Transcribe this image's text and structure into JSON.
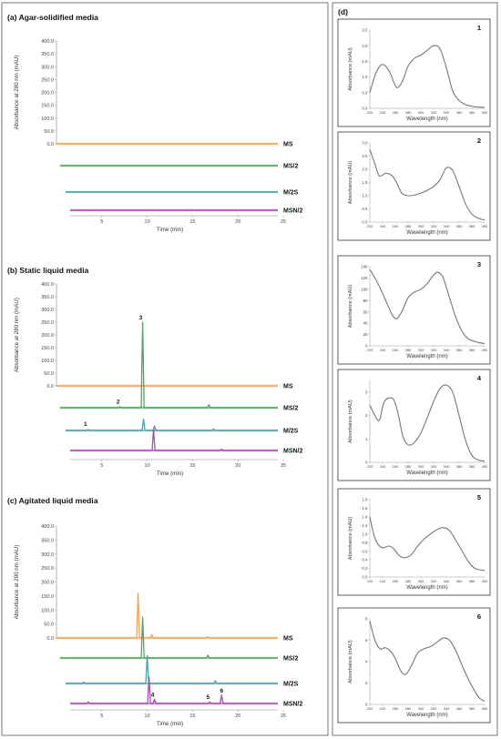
{
  "colors": {
    "MS": "#f0a24f",
    "MS/2": "#4fa35a",
    "M/2S": "#4aa3a8",
    "MSN/2": "#a64db3",
    "spectrum": "#777777"
  },
  "chromatograms": {
    "ylabel": "Absorbance at 280 nm (mAU)",
    "xlabel": "Time (min)",
    "yticks": [
      "0.0",
      "50.0",
      "100.0",
      "150.0",
      "200.0",
      "250.0",
      "300.0",
      "350.0",
      "400.0"
    ],
    "xticks": [
      "5",
      "10",
      "15",
      "20",
      "25"
    ],
    "panels": [
      {
        "title": "(a) Agar-solidified media",
        "traces": [
          {
            "name": "MS",
            "peaks": []
          },
          {
            "name": "MS/2",
            "peaks": []
          },
          {
            "name": "M/2S",
            "peaks": []
          },
          {
            "name": "MSN/2",
            "peaks": []
          }
        ],
        "peak_labels": []
      },
      {
        "title": "(b) Static liquid media",
        "traces": [
          {
            "name": "MS",
            "peaks": []
          },
          {
            "name": "MS/2",
            "peaks": [
              [
                7.0,
                4
              ],
              [
                9.5,
                335
              ],
              [
                16.8,
                12
              ]
            ]
          },
          {
            "name": "M/2S",
            "peaks": [
              [
                3.5,
                4
              ],
              [
                9.6,
                45
              ],
              [
                10.8,
                18
              ],
              [
                17.3,
                6
              ]
            ]
          },
          {
            "name": "MSN/2",
            "peaks": [
              [
                10.7,
                85
              ],
              [
                18.2,
                5
              ]
            ]
          }
        ],
        "peak_labels": [
          {
            "text": "3",
            "trace": "MS/2",
            "x": 9.5,
            "y": 335
          },
          {
            "text": "2",
            "trace": "MS/2",
            "x": 7.0,
            "y": 6
          },
          {
            "text": "1",
            "trace": "M/2S",
            "x": 3.4,
            "y": 8
          }
        ]
      },
      {
        "title": "(c) Agitated liquid media",
        "traces": [
          {
            "name": "MS",
            "peaks": [
              [
                9.0,
                160
              ],
              [
                10.5,
                12
              ],
              [
                16.7,
                4
              ]
            ]
          },
          {
            "name": "MS/2",
            "peaks": [
              [
                9.5,
                145
              ],
              [
                16.7,
                10
              ]
            ]
          },
          {
            "name": "M/2S",
            "peaks": [
              [
                10.0,
                100
              ],
              [
                17.5,
                10
              ],
              [
                3.0,
                5
              ]
            ]
          },
          {
            "name": "MSN/2",
            "peaks": [
              [
                10.2,
                95
              ],
              [
                10.8,
                15
              ],
              [
                16.9,
                6
              ],
              [
                18.2,
                30
              ],
              [
                3.5,
                6
              ]
            ]
          }
        ],
        "peak_labels": [
          {
            "text": "4",
            "trace": "MSN/2",
            "x": 10.8,
            "y": 15
          },
          {
            "text": "5",
            "trace": "MSN/2",
            "x": 16.9,
            "y": 6
          },
          {
            "text": "6",
            "trace": "MSN/2",
            "x": 18.4,
            "y": 30
          }
        ]
      }
    ]
  },
  "spectra": {
    "panel_label": "(d)",
    "xlabel": "Wavelength (nm)",
    "ylabel": "Absorbance (mAU)",
    "xticks": [
      "220",
      "240",
      "260",
      "280",
      "300",
      "320",
      "340",
      "360",
      "380",
      "400"
    ],
    "items": [
      {
        "num": "1",
        "yticks": [
          "0.0",
          "0.5",
          "1.0",
          "1.5",
          "2.0",
          "2.5"
        ],
        "ymax": 2.5,
        "points": [
          [
            220,
            0.5
          ],
          [
            230,
            1.15
          ],
          [
            240,
            1.4
          ],
          [
            250,
            1.2
          ],
          [
            260,
            0.72
          ],
          [
            265,
            0.68
          ],
          [
            272,
            0.9
          ],
          [
            280,
            1.35
          ],
          [
            290,
            1.6
          ],
          [
            300,
            1.7
          ],
          [
            310,
            1.85
          ],
          [
            320,
            2.0
          ],
          [
            330,
            1.9
          ],
          [
            340,
            1.3
          ],
          [
            350,
            0.55
          ],
          [
            360,
            0.25
          ],
          [
            370,
            0.12
          ],
          [
            385,
            0.05
          ],
          [
            400,
            0.03
          ]
        ]
      },
      {
        "num": "2",
        "yticks": [
          "0.0",
          "0.5",
          "1.0",
          "1.5",
          "2.0",
          "2.5",
          "3.0"
        ],
        "ymax": 3.0,
        "points": [
          [
            220,
            2.75
          ],
          [
            228,
            2.2
          ],
          [
            235,
            1.75
          ],
          [
            245,
            1.85
          ],
          [
            255,
            1.75
          ],
          [
            262,
            1.5
          ],
          [
            270,
            1.1
          ],
          [
            280,
            1.0
          ],
          [
            290,
            1.02
          ],
          [
            300,
            1.1
          ],
          [
            310,
            1.2
          ],
          [
            320,
            1.35
          ],
          [
            330,
            1.6
          ],
          [
            340,
            2.05
          ],
          [
            350,
            1.95
          ],
          [
            360,
            1.35
          ],
          [
            370,
            0.7
          ],
          [
            380,
            0.3
          ],
          [
            390,
            0.15
          ],
          [
            400,
            0.08
          ]
        ]
      },
      {
        "num": "3",
        "yticks": [
          "0",
          "20",
          "40",
          "60",
          "80",
          "100",
          "120",
          "140"
        ],
        "ymax": 140,
        "points": [
          [
            220,
            135
          ],
          [
            228,
            120
          ],
          [
            235,
            105
          ],
          [
            245,
            80
          ],
          [
            255,
            55
          ],
          [
            262,
            48
          ],
          [
            270,
            60
          ],
          [
            280,
            85
          ],
          [
            290,
            95
          ],
          [
            300,
            100
          ],
          [
            310,
            110
          ],
          [
            320,
            125
          ],
          [
            327,
            130
          ],
          [
            335,
            120
          ],
          [
            345,
            85
          ],
          [
            355,
            50
          ],
          [
            365,
            25
          ],
          [
            375,
            12
          ],
          [
            390,
            6
          ],
          [
            400,
            4
          ]
        ]
      },
      {
        "num": "4",
        "yticks": [
          "0",
          "1",
          "2",
          "3"
        ],
        "ymax": 3.5,
        "points": [
          [
            220,
            2.45
          ],
          [
            228,
            2.0
          ],
          [
            235,
            1.8
          ],
          [
            242,
            2.55
          ],
          [
            250,
            2.75
          ],
          [
            258,
            2.65
          ],
          [
            265,
            2.0
          ],
          [
            272,
            1.1
          ],
          [
            280,
            0.75
          ],
          [
            290,
            0.85
          ],
          [
            300,
            1.25
          ],
          [
            310,
            1.9
          ],
          [
            320,
            2.6
          ],
          [
            330,
            3.15
          ],
          [
            340,
            3.3
          ],
          [
            350,
            3.0
          ],
          [
            360,
            2.0
          ],
          [
            370,
            0.95
          ],
          [
            380,
            0.3
          ],
          [
            390,
            0.1
          ],
          [
            400,
            0.05
          ]
        ]
      },
      {
        "num": "5",
        "yticks": [
          "0.0",
          "0.2",
          "0.4",
          "0.6",
          "0.8",
          "1.0",
          "1.2",
          "1.4",
          "1.6",
          "1.8"
        ],
        "ymax": 1.8,
        "points": [
          [
            220,
            1.4
          ],
          [
            226,
            1.0
          ],
          [
            232,
            0.78
          ],
          [
            240,
            0.68
          ],
          [
            250,
            0.72
          ],
          [
            258,
            0.65
          ],
          [
            266,
            0.5
          ],
          [
            275,
            0.45
          ],
          [
            285,
            0.52
          ],
          [
            295,
            0.72
          ],
          [
            305,
            0.88
          ],
          [
            315,
            1.0
          ],
          [
            325,
            1.1
          ],
          [
            335,
            1.15
          ],
          [
            345,
            1.08
          ],
          [
            355,
            0.85
          ],
          [
            365,
            0.6
          ],
          [
            375,
            0.35
          ],
          [
            385,
            0.2
          ],
          [
            400,
            0.15
          ]
        ]
      },
      {
        "num": "6",
        "yticks": [
          "0",
          "2",
          "4",
          "6",
          "8"
        ],
        "ymax": 8.0,
        "points": [
          [
            220,
            7.8
          ],
          [
            228,
            6.0
          ],
          [
            236,
            5.2
          ],
          [
            244,
            5.3
          ],
          [
            252,
            5.0
          ],
          [
            260,
            4.3
          ],
          [
            268,
            3.2
          ],
          [
            276,
            2.8
          ],
          [
            285,
            3.6
          ],
          [
            295,
            4.8
          ],
          [
            305,
            5.2
          ],
          [
            315,
            5.4
          ],
          [
            325,
            5.8
          ],
          [
            335,
            6.2
          ],
          [
            345,
            6.0
          ],
          [
            355,
            5.0
          ],
          [
            365,
            3.6
          ],
          [
            375,
            2.3
          ],
          [
            385,
            1.2
          ],
          [
            392,
            0.6
          ],
          [
            400,
            0.3
          ]
        ]
      }
    ]
  }
}
